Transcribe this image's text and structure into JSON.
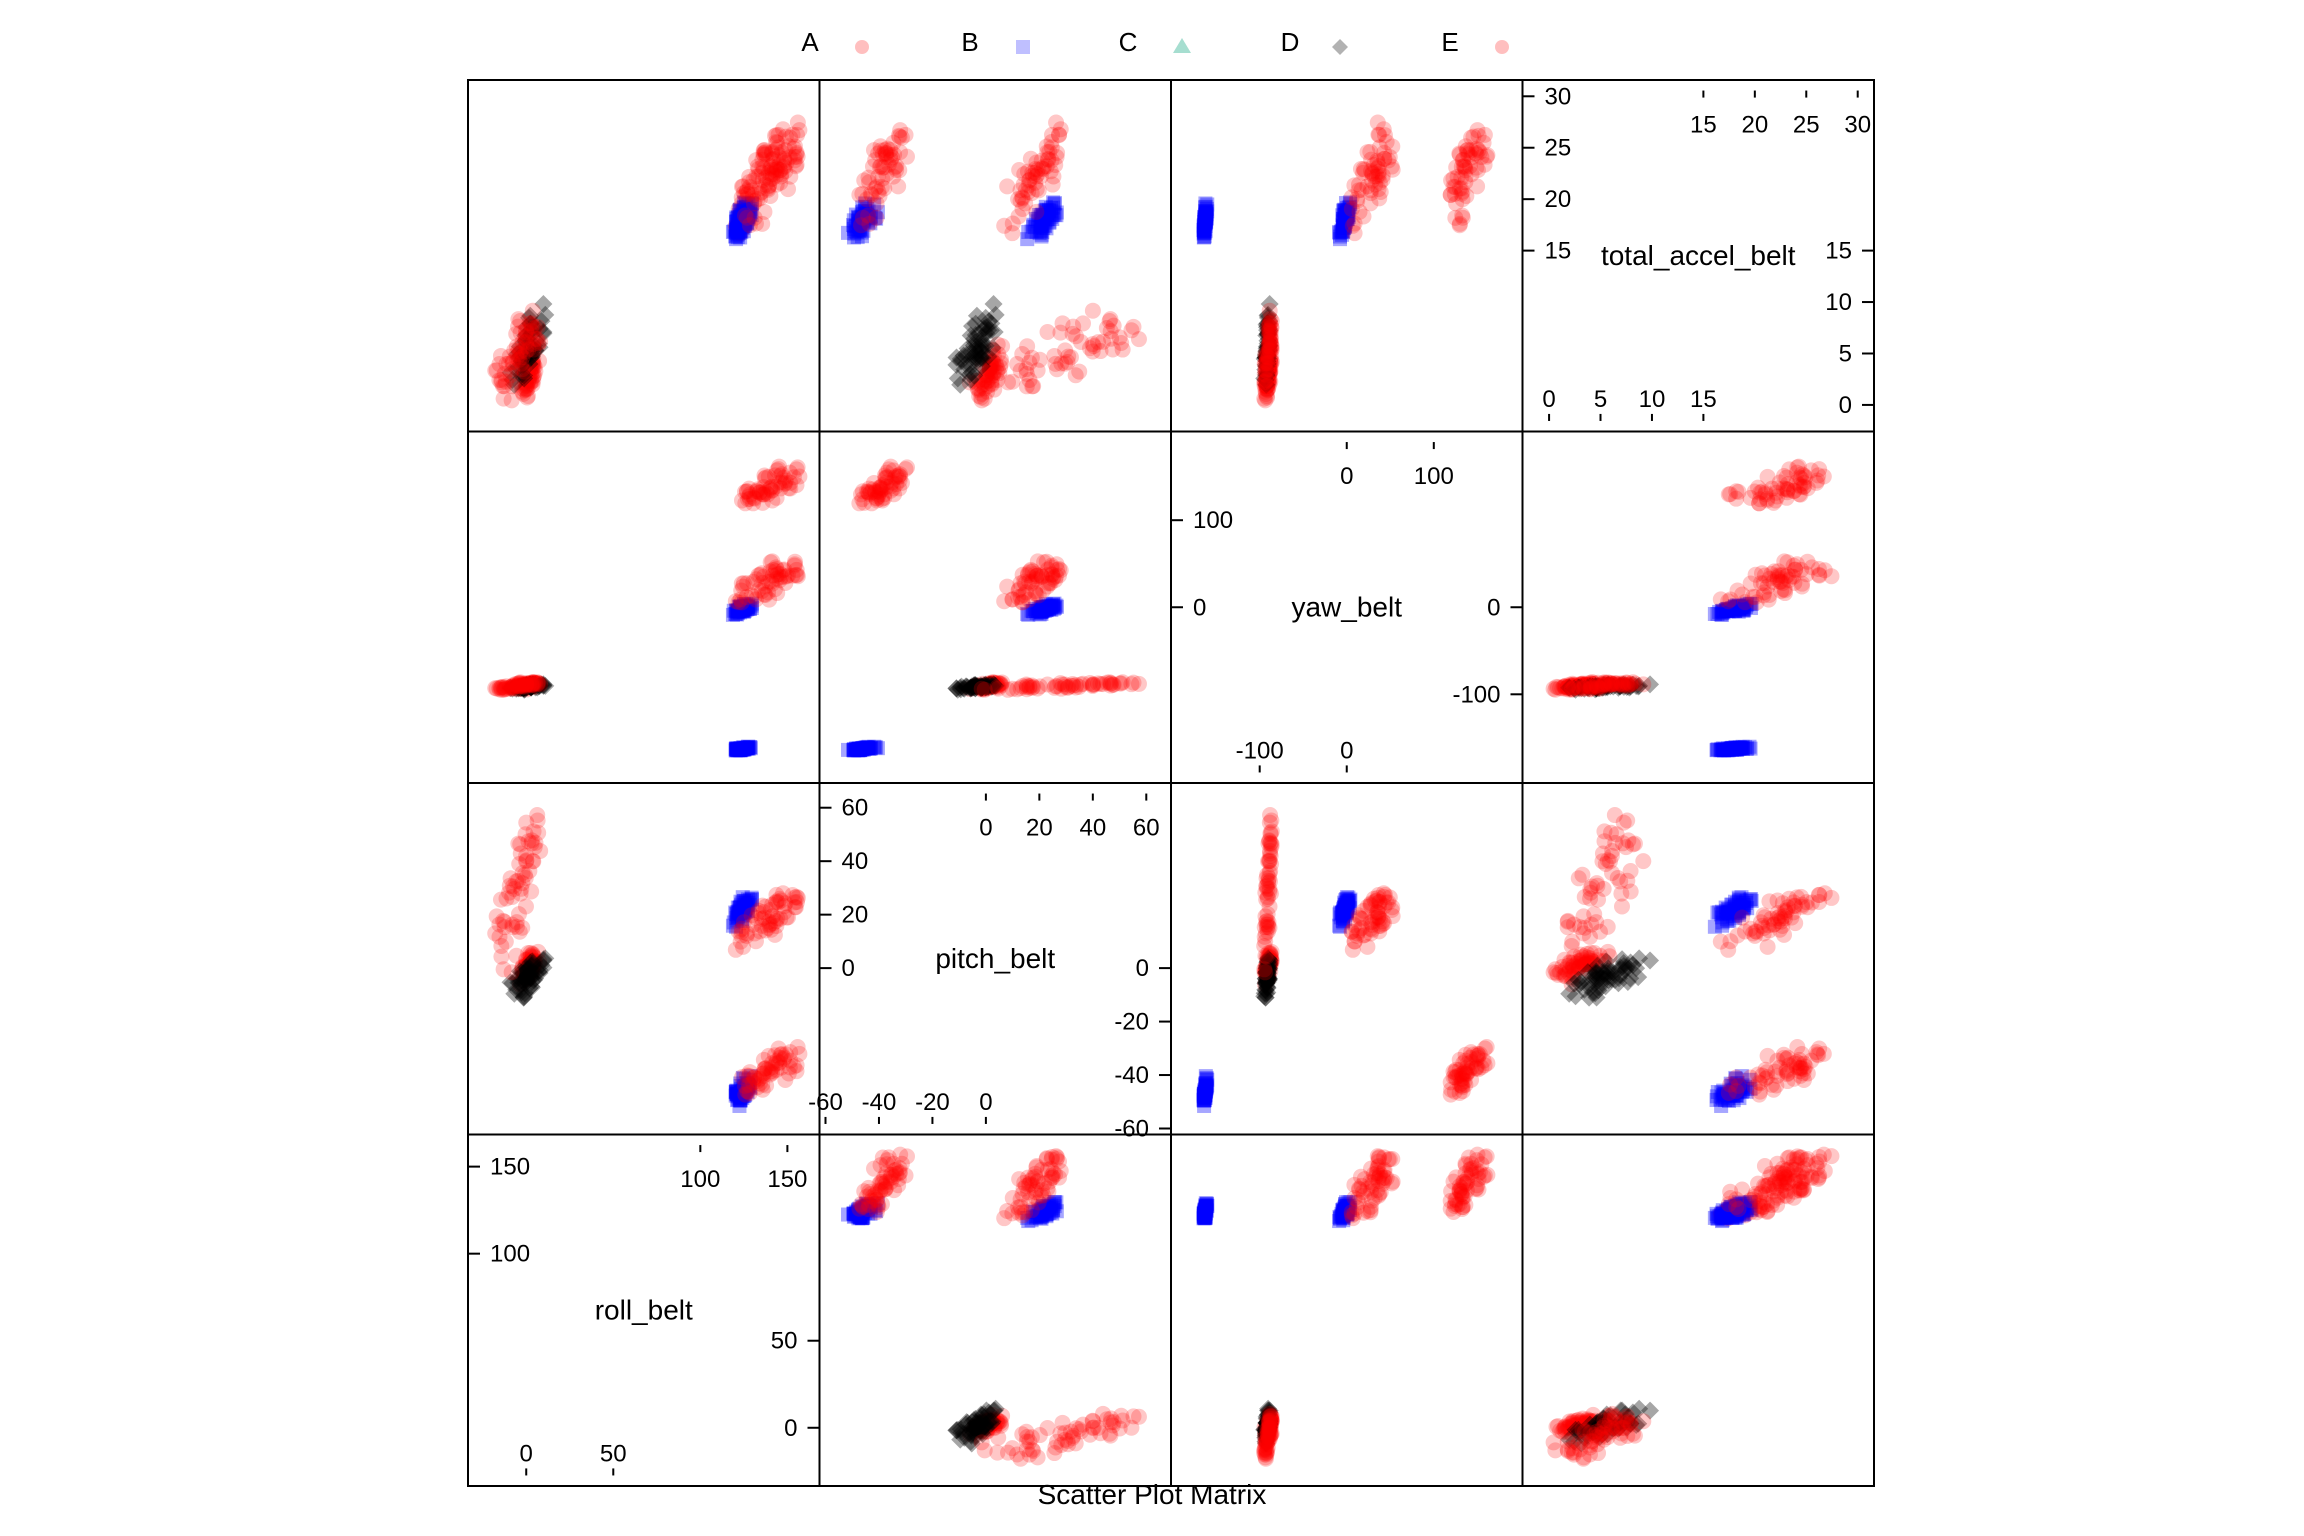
{
  "chart_data": {
    "type": "scatter",
    "title": "Scatter Plot Matrix",
    "legend": {
      "placement": "top",
      "items": [
        {
          "label": "A",
          "symbol": "circle",
          "color": "#ff0000"
        },
        {
          "label": "B",
          "symbol": "square",
          "color": "#0000ff"
        },
        {
          "label": "C",
          "symbol": "triangle",
          "color": "#00a078"
        },
        {
          "label": "D",
          "symbol": "diamond",
          "color": "#000000"
        },
        {
          "label": "E",
          "symbol": "circle",
          "color": "#ff0000"
        }
      ]
    },
    "variables": [
      {
        "name": "roll_belt",
        "range": [
          -30,
          165
        ],
        "ticks_low": [
          "0",
          "50"
        ],
        "ticks_high": [
          "100",
          "150"
        ]
      },
      {
        "name": "pitch_belt",
        "range": [
          -60,
          67
        ],
        "ticks_low": [
          "-60",
          "-40",
          "-20",
          "0"
        ],
        "ticks_high": [
          "0",
          "20",
          "40",
          "60"
        ]
      },
      {
        "name": "yaw_belt",
        "range": [
          -195,
          195
        ],
        "ticks_low": [
          "-100",
          "0"
        ],
        "ticks_high": [
          "0",
          "100"
        ]
      },
      {
        "name": "total_accel_belt",
        "range": [
          -2,
          31
        ],
        "ticks_low": [
          "0",
          "5",
          "10",
          "15"
        ],
        "ticks_high": [
          "15",
          "20",
          "25",
          "30"
        ]
      }
    ],
    "clusters": [
      {
        "class": "A",
        "color": "#ff0000",
        "symbol": "circle",
        "roll": [
          -5,
          8
        ],
        "pitch": [
          -8,
          10
        ],
        "yaw": [
          -95,
          -85
        ],
        "accel": [
          0,
          6
        ]
      },
      {
        "class": "D",
        "color": "#000000",
        "symbol": "diamond",
        "roll": [
          -10,
          12
        ],
        "pitch": [
          -12,
          5
        ],
        "yaw": [
          -95,
          -88
        ],
        "accel": [
          1,
          10
        ]
      },
      {
        "class": "E",
        "color": "#ff0000",
        "symbol": "circle",
        "roll": [
          -20,
          10
        ],
        "pitch": [
          -5,
          62
        ],
        "yaw": [
          -95,
          -85
        ],
        "accel": [
          0,
          10
        ]
      },
      {
        "class": "B",
        "color": "#0000ff",
        "symbol": "square",
        "roll": [
          118,
          130
        ],
        "pitch": [
          15,
          28
        ],
        "yaw": [
          -10,
          5
        ],
        "accel": [
          16,
          20
        ]
      },
      {
        "class": "A",
        "color": "#ff0000",
        "symbol": "circle",
        "roll": [
          120,
          160
        ],
        "pitch": [
          5,
          30
        ],
        "yaw": [
          0,
          60
        ],
        "accel": [
          16,
          28
        ]
      },
      {
        "class": "B",
        "color": "#0000ff",
        "symbol": "square",
        "roll": [
          118,
          130
        ],
        "pitch": [
          -52,
          -40
        ],
        "yaw": [
          -165,
          -160
        ],
        "accel": [
          16,
          20
        ]
      },
      {
        "class": "E",
        "color": "#ff0000",
        "symbol": "circle",
        "roll": [
          120,
          160
        ],
        "pitch": [
          -50,
          -27
        ],
        "yaw": [
          110,
          165
        ],
        "accel": [
          17,
          28
        ]
      }
    ]
  }
}
